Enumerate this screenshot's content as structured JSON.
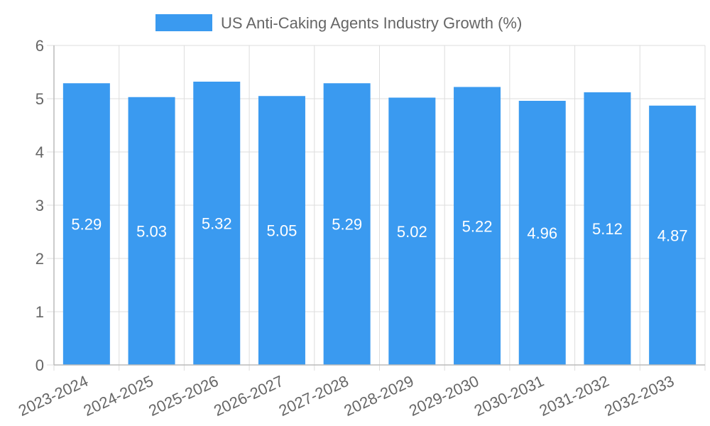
{
  "chart_data": {
    "type": "bar",
    "title": "",
    "xlabel": "",
    "ylabel": "",
    "legend": [
      {
        "label": "US Anti-Caking Agents Industry Growth (%)",
        "color": "#3a9af0",
        "position": "top-center"
      }
    ],
    "categories": [
      "2023-2024",
      "2024-2025",
      "2025-2026",
      "2026-2027",
      "2027-2028",
      "2028-2029",
      "2029-2030",
      "2030-2031",
      "2031-2032",
      "2032-2033"
    ],
    "series": [
      {
        "name": "US Anti-Caking Agents Industry Growth (%)",
        "color": "#3a9af0",
        "values": [
          5.29,
          5.03,
          5.32,
          5.05,
          5.29,
          5.02,
          5.22,
          4.96,
          5.12,
          4.87
        ],
        "value_labels": [
          "5.29",
          "5.03",
          "5.32",
          "5.05",
          "5.29",
          "5.02",
          "5.22",
          "4.96",
          "5.12",
          "4.87"
        ]
      }
    ],
    "ylim": [
      0,
      6
    ],
    "yticks": [
      "0",
      "1",
      "2",
      "3",
      "4",
      "5",
      "6"
    ],
    "grid": true
  }
}
